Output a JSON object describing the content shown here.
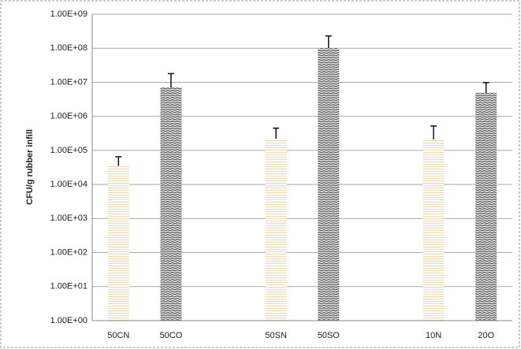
{
  "chart_data": {
    "type": "bar",
    "y_label": "CFU/g rubber infill",
    "categories": [
      "50CN",
      "50CO",
      null,
      "50SN",
      "50SO",
      null,
      "10N",
      "20O"
    ],
    "values": [
      35000,
      7000000,
      null,
      220000,
      100000000,
      null,
      210000,
      4900000
    ],
    "errors": [
      30000,
      11000000,
      null,
      230000,
      130000000,
      null,
      310000,
      4900000
    ],
    "colors": [
      "#e8dcb8",
      "#555555",
      null,
      "#e8dcb8",
      "#555555",
      null,
      "#e8dcb8",
      "#555555"
    ],
    "log_scale": true,
    "grid": true,
    "ylim": [
      1,
      1000000000
    ],
    "yticks": [
      {
        "value": 1,
        "label": "1.00E+00"
      },
      {
        "value": 10,
        "label": "1.00E+01"
      },
      {
        "value": 100,
        "label": "1.00E+02"
      },
      {
        "value": 1000,
        "label": "1.00E+03"
      },
      {
        "value": 10000,
        "label": "1.00E+04"
      },
      {
        "value": 100000,
        "label": "1.00E+05"
      },
      {
        "value": 1000000,
        "label": "1.00E+06"
      },
      {
        "value": 10000000,
        "label": "1.00E+07"
      },
      {
        "value": 100000000,
        "label": "1.00E+08"
      },
      {
        "value": 1000000000,
        "label": "1.00E+09"
      }
    ]
  }
}
